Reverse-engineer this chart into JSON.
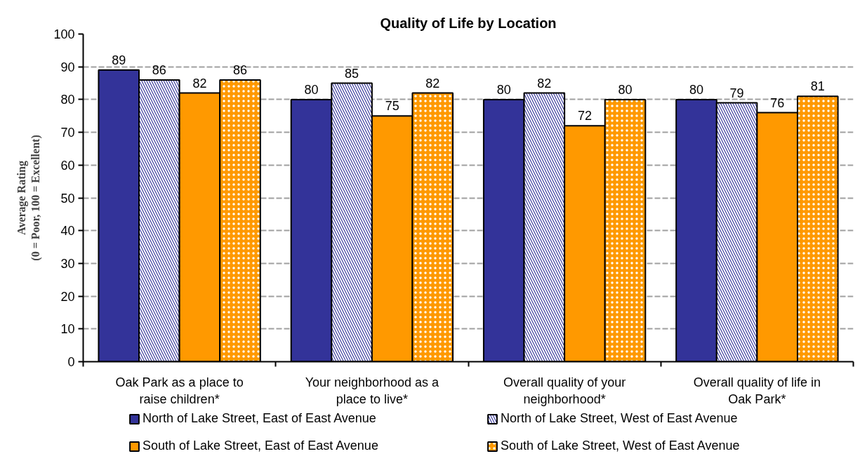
{
  "chart_data": {
    "type": "bar",
    "title": "Quality of Life by Location",
    "ylabel": "Average Rating\n(0 = Poor, 100 = Excellent)",
    "categories": [
      "Oak Park as a place to raise children*",
      "Your neighborhood as a place to live*",
      "Overall quality of your neighborhood*",
      "Overall quality of life in Oak Park*"
    ],
    "series": [
      {
        "name": "North of Lake Street, East of East Avenue",
        "color": "#333399",
        "values": [
          89,
          80,
          80,
          80
        ]
      },
      {
        "name": "North of Lake Street, West of East Avenue",
        "color": "#333399",
        "values": [
          86,
          85,
          82,
          79
        ]
      },
      {
        "name": "South of Lake Street, East of East Avenue",
        "color": "#ff9900",
        "values": [
          82,
          75,
          72,
          76
        ]
      },
      {
        "name": "South of Lake Street, West of East Avenue",
        "color": "#ff9900",
        "values": [
          86,
          82,
          80,
          81
        ]
      }
    ],
    "ylim": [
      0,
      100
    ],
    "yticks": [
      0,
      10,
      20,
      30,
      40,
      50,
      60,
      70,
      80,
      90,
      100
    ],
    "grid": "y",
    "legend": "bottom",
    "data_labels": true
  }
}
